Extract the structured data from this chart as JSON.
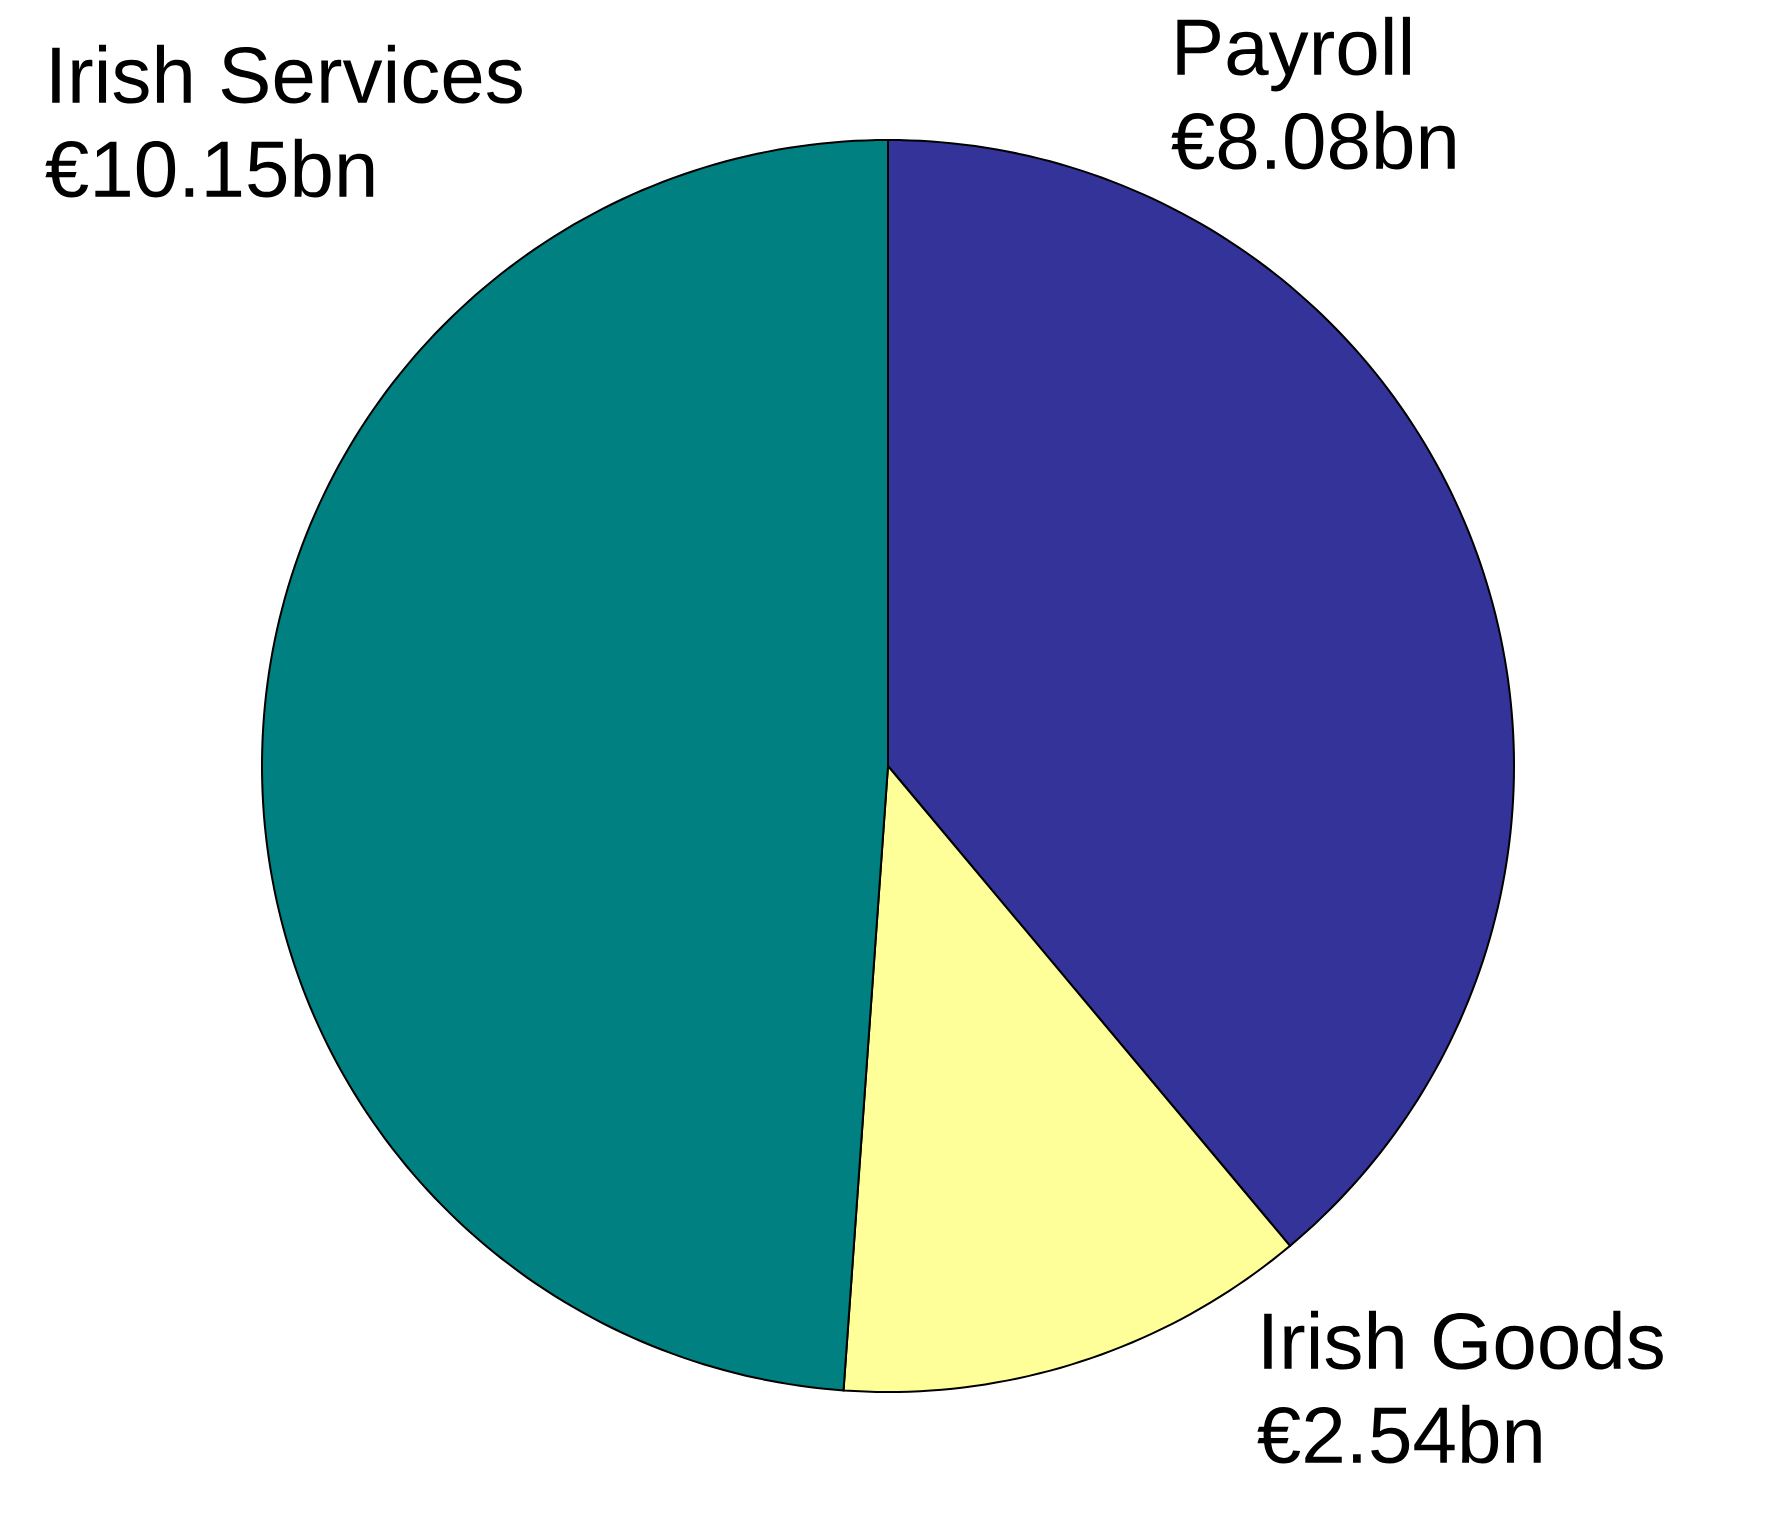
{
  "chart_data": {
    "type": "pie",
    "categories": [
      "Payroll",
      "Irish Goods",
      "Irish Services"
    ],
    "values": [
      8.08,
      2.54,
      10.15
    ],
    "colors": [
      "#333399",
      "#ffff99",
      "#008080"
    ],
    "value_labels": [
      "€8.08bn",
      "€2.54bn",
      "€10.15bn"
    ]
  }
}
